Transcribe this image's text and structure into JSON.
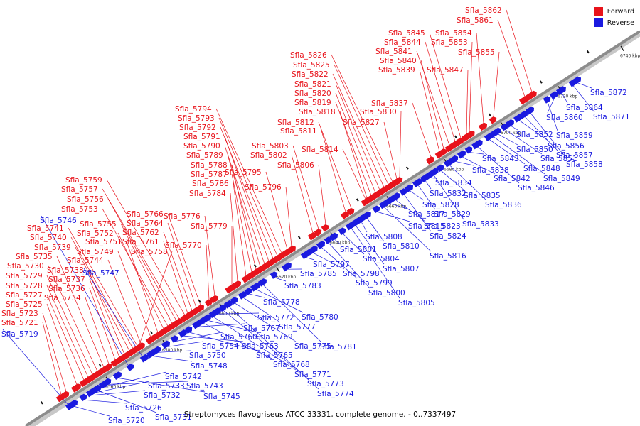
{
  "caption": "Streptomyces flavogriseus ATCC 33331, complete genome. - 0..7337497",
  "legend": [
    {
      "label": "Forward",
      "color": "#e8131b"
    },
    {
      "label": "Reverse",
      "color": "#1a1ae0"
    }
  ],
  "colors": {
    "forward": "#e8131b",
    "reverse": "#1a1ae0",
    "backbone": "#8c8c8c",
    "tick": "#111111"
  },
  "scale_ticks": [
    "6560 kbp",
    "6580 kbp",
    "6600 kbp",
    "6620 kbp",
    "6640 kbp",
    "6660 kbp",
    "6680 kbp",
    "6700 kbp",
    "6720 kbp",
    "6740 kbp"
  ],
  "forward_genes": [
    "Sfla_5721",
    "Sfla_5723",
    "Sfla_5725",
    "Sfla_5727",
    "Sfla_5728",
    "Sfla_5729",
    "Sfla_5730",
    "Sfla_5734",
    "Sfla_5735",
    "Sfla_5736",
    "Sfla_5737",
    "Sfla_5738",
    "Sfla_5739",
    "Sfla_5740",
    "Sfla_5741",
    "Sfla_5744",
    "Sfla_5749",
    "Sfla_5751",
    "Sfla_5752",
    "Sfla_5753",
    "Sfla_5755",
    "Sfla_5756",
    "Sfla_5757",
    "Sfla_5758",
    "Sfla_5759",
    "Sfla_5761",
    "Sfla_5762",
    "Sfla_5764",
    "Sfla_5766",
    "Sfla_5770",
    "Sfla_5776",
    "Sfla_5779",
    "Sfla_5784",
    "Sfla_5786",
    "Sfla_5787",
    "Sfla_5788",
    "Sfla_5789",
    "Sfla_5790",
    "Sfla_5791",
    "Sfla_5792",
    "Sfla_5793",
    "Sfla_5794",
    "Sfla_5795",
    "Sfla_5796",
    "Sfla_5802",
    "Sfla_5803",
    "Sfla_5806",
    "Sfla_5811",
    "Sfla_5812",
    "Sfla_5814",
    "Sfla_5818",
    "Sfla_5819",
    "Sfla_5820",
    "Sfla_5821",
    "Sfla_5822",
    "Sfla_5825",
    "Sfla_5826",
    "Sfla_5827",
    "Sfla_5830",
    "Sfla_5837",
    "Sfla_5839",
    "Sfla_5840",
    "Sfla_5841",
    "Sfla_5844",
    "Sfla_5845",
    "Sfla_5847",
    "Sfla_5853",
    "Sfla_5854",
    "Sfla_5855",
    "Sfla_5861",
    "Sfla_5862"
  ],
  "reverse_genes": [
    "Sfla_5719",
    "Sfla_5720",
    "Sfla_5726",
    "Sfla_5731",
    "Sfla_5732",
    "Sfla_5733",
    "Sfla_5742",
    "Sfla_5743",
    "Sfla_5745",
    "Sfla_5746",
    "Sfla_5747",
    "Sfla_5748",
    "Sfla_5750",
    "Sfla_5754",
    "Sfla_5760",
    "Sfla_5763",
    "Sfla_5765",
    "Sfla_5767",
    "Sfla_5768",
    "Sfla_5769",
    "Sfla_5771",
    "Sfla_5772",
    "Sfla_5773",
    "Sfla_5774",
    "Sfla_5775",
    "Sfla_5777",
    "Sfla_5778",
    "Sfla_5780",
    "Sfla_5781",
    "Sfla_5783",
    "Sfla_5785",
    "Sfla_5797",
    "Sfla_5798",
    "Sfla_5799",
    "Sfla_5800",
    "Sfla_5801",
    "Sfla_5804",
    "Sfla_5805",
    "Sfla_5807",
    "Sfla_5808",
    "Sfla_5810",
    "Sfla_5815",
    "Sfla_5816",
    "Sfla_5817",
    "Sfla_5823",
    "Sfla_5824",
    "Sfla_5828",
    "Sfla_5829",
    "Sfla_5832",
    "Sfla_5833",
    "Sfla_5834",
    "Sfla_5835",
    "Sfla_5836",
    "Sfla_5838",
    "Sfla_5842",
    "Sfla_5843",
    "Sfla_5846",
    "Sfla_5848",
    "Sfla_5849",
    "Sfla_5850",
    "Sfla_5851",
    "Sfla_5852",
    "Sfla_5856",
    "Sfla_5857",
    "Sfla_5858",
    "Sfla_5859",
    "Sfla_5860",
    "Sfla_5864",
    "Sfla_5871",
    "Sfla_5872"
  ]
}
